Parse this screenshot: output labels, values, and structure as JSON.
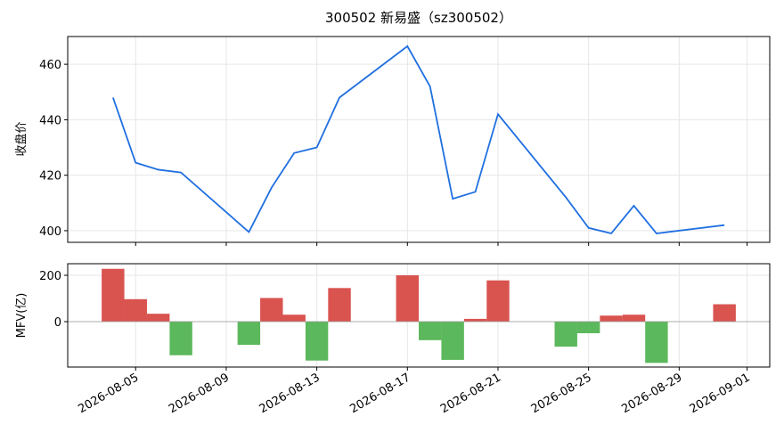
{
  "chart_data": [
    {
      "type": "line",
      "title": "300502 新易盛（sz300502）",
      "ylabel": "收盘价",
      "x": [
        "2026-08-04",
        "2026-08-05",
        "2026-08-06",
        "2026-08-07",
        "2026-08-10",
        "2026-08-11",
        "2026-08-12",
        "2026-08-13",
        "2026-08-14",
        "2026-08-17",
        "2026-08-18",
        "2026-08-19",
        "2026-08-20",
        "2026-08-21",
        "2026-08-24",
        "2026-08-25",
        "2026-08-26",
        "2026-08-27",
        "2026-08-28",
        "2026-08-31"
      ],
      "values": [
        448,
        424.5,
        422,
        421,
        399.5,
        415.5,
        428,
        430,
        448,
        466.5,
        452,
        411.5,
        414,
        442,
        412,
        401,
        399,
        409,
        399,
        402
      ],
      "color": "#1f6fe0",
      "xlim": [
        "2026-08-02",
        "2026-09-02"
      ],
      "ylim": [
        395.8,
        470
      ],
      "yticks": [
        400,
        420,
        440,
        460
      ],
      "grid": true
    },
    {
      "type": "bar",
      "ylabel": "MFV(亿)",
      "x": [
        "2026-08-04",
        "2026-08-05",
        "2026-08-06",
        "2026-08-07",
        "2026-08-10",
        "2026-08-11",
        "2026-08-12",
        "2026-08-13",
        "2026-08-14",
        "2026-08-17",
        "2026-08-18",
        "2026-08-19",
        "2026-08-20",
        "2026-08-21",
        "2026-08-24",
        "2026-08-25",
        "2026-08-26",
        "2026-08-27",
        "2026-08-28",
        "2026-08-31"
      ],
      "values": [
        228,
        97,
        34,
        -145,
        -100,
        102,
        30,
        -168,
        145,
        200,
        -80,
        -165,
        12,
        178,
        -108,
        -50,
        26,
        30,
        -178,
        75
      ],
      "positive_color": "#d9534f",
      "negative_color": "#5cb85c",
      "xlim": [
        "2026-08-02",
        "2026-09-02"
      ],
      "ylim": [
        -196,
        250
      ],
      "yticks": [
        0,
        200
      ],
      "xticks": [
        "2026-08-05",
        "2026-08-09",
        "2026-08-13",
        "2026-08-17",
        "2026-08-21",
        "2026-08-25",
        "2026-08-29",
        "2026-09-01"
      ],
      "grid": true
    }
  ]
}
